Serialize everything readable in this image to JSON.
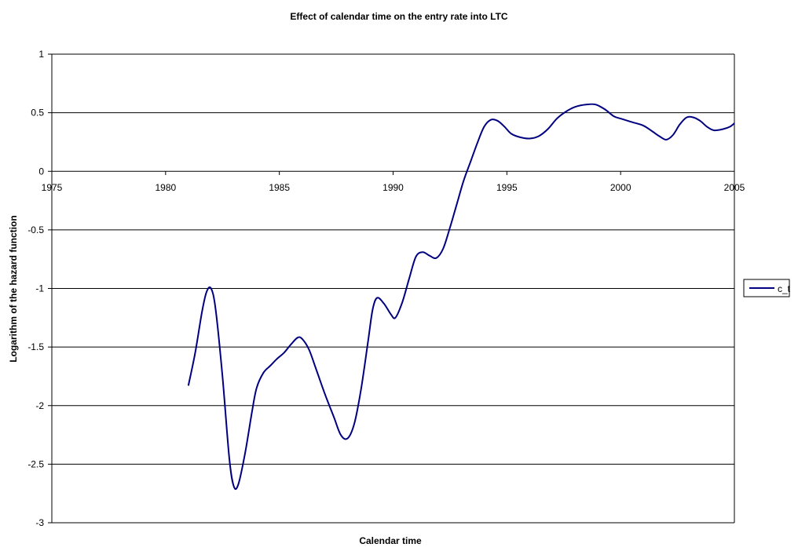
{
  "chart_data": {
    "type": "line",
    "title": "Effect of calendar time on the entry rate into LTC",
    "xlabel": "Calendar time",
    "ylabel": "Logarithm of the hazard function",
    "xlim": [
      1975,
      2005
    ],
    "ylim": [
      -3,
      1
    ],
    "x_ticks": [
      "1975",
      "1980",
      "1985",
      "1990",
      "1995",
      "2000",
      "2005"
    ],
    "y_ticks": [
      "1",
      "0.5",
      "0",
      "-0.5",
      "-1",
      "-1.5",
      "-2",
      "-2.5",
      "-3"
    ],
    "grid": "horizontal",
    "legend_position": "right",
    "series": [
      {
        "name": "c_t",
        "color": "#000080",
        "x": [
          1981.0,
          1981.3,
          1981.6,
          1981.8,
          1982.0,
          1982.2,
          1982.5,
          1982.8,
          1983.0,
          1983.2,
          1983.5,
          1983.8,
          1984.0,
          1984.3,
          1984.6,
          1984.9,
          1985.2,
          1985.5,
          1985.8,
          1986.0,
          1986.3,
          1986.6,
          1987.0,
          1987.4,
          1987.7,
          1988.0,
          1988.3,
          1988.6,
          1988.9,
          1989.1,
          1989.3,
          1989.6,
          1989.9,
          1990.1,
          1990.4,
          1990.7,
          1991.0,
          1991.3,
          1991.6,
          1991.9,
          1992.2,
          1992.5,
          1992.8,
          1993.1,
          1993.4,
          1993.7,
          1994.0,
          1994.3,
          1994.6,
          1994.9,
          1995.2,
          1995.6,
          1996.0,
          1996.4,
          1996.8,
          1997.2,
          1997.6,
          1998.0,
          1998.5,
          1998.9,
          1999.3,
          1999.7,
          2000.0,
          2000.5,
          2001.0,
          2001.4,
          2001.7,
          2002.0,
          2002.3,
          2002.6,
          2002.9,
          2003.2,
          2003.5,
          2003.8,
          2004.1,
          2004.5,
          2004.8,
          2005.0
        ],
        "y": [
          -1.83,
          -1.55,
          -1.2,
          -1.03,
          -1.0,
          -1.18,
          -1.75,
          -2.45,
          -2.69,
          -2.67,
          -2.4,
          -2.05,
          -1.85,
          -1.72,
          -1.66,
          -1.6,
          -1.55,
          -1.48,
          -1.42,
          -1.43,
          -1.52,
          -1.68,
          -1.9,
          -2.1,
          -2.25,
          -2.28,
          -2.15,
          -1.85,
          -1.45,
          -1.18,
          -1.08,
          -1.13,
          -1.22,
          -1.25,
          -1.12,
          -0.92,
          -0.73,
          -0.69,
          -0.72,
          -0.74,
          -0.66,
          -0.48,
          -0.28,
          -0.08,
          0.08,
          0.24,
          0.38,
          0.44,
          0.43,
          0.38,
          0.32,
          0.29,
          0.28,
          0.3,
          0.36,
          0.45,
          0.51,
          0.55,
          0.57,
          0.57,
          0.53,
          0.47,
          0.45,
          0.42,
          0.39,
          0.34,
          0.3,
          0.27,
          0.31,
          0.4,
          0.46,
          0.46,
          0.43,
          0.38,
          0.35,
          0.36,
          0.38,
          0.41
        ]
      }
    ]
  }
}
